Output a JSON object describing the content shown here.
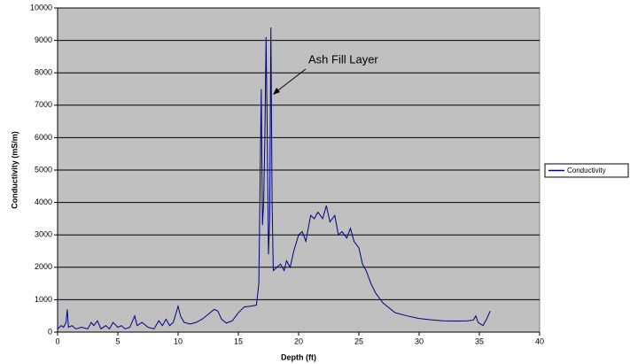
{
  "chart_data": {
    "type": "line",
    "xlabel": "Depth (ft)",
    "ylabel": "Conductivity (mS/m)",
    "annotation": "Ash Fill Layer",
    "legend": "right",
    "grid": true,
    "xlim": [
      0,
      40
    ],
    "xticks": [
      0,
      5,
      10,
      15,
      20,
      25,
      30,
      35,
      40
    ],
    "ylim": [
      0,
      10000
    ],
    "yticks": [
      0,
      1000,
      2000,
      3000,
      4000,
      5000,
      6000,
      7000,
      8000,
      9000,
      10000
    ],
    "x": [
      0,
      0.3,
      0.5,
      0.7,
      0.8,
      0.9,
      1.2,
      1.5,
      2,
      2.5,
      2.8,
      3,
      3.3,
      3.6,
      4,
      4.3,
      4.6,
      5,
      5.3,
      5.6,
      6,
      6.4,
      6.6,
      7,
      7.5,
      8,
      8.4,
      8.7,
      9,
      9.3,
      9.6,
      10,
      10.2,
      10.5,
      11,
      11.5,
      12,
      12.5,
      13,
      13.3,
      13.6,
      14,
      14.5,
      15,
      15.5,
      16,
      16.5,
      16.7,
      16.8,
      16.9,
      17.0,
      17.1,
      17.2,
      17.3,
      17.4,
      17.5,
      17.6,
      17.7,
      17.8,
      17.9,
      18.2,
      18.5,
      18.8,
      19,
      19.3,
      19.6,
      20,
      20.3,
      20.6,
      21,
      21.3,
      21.6,
      22,
      22.3,
      22.6,
      23,
      23.3,
      23.6,
      24,
      24.3,
      24.6,
      25,
      25.3,
      25.6,
      26,
      26.4,
      27,
      28,
      29,
      30,
      31,
      32,
      33,
      34,
      34.5,
      34.7,
      34.9,
      35.3,
      35.6,
      35.9
    ],
    "series": [
      {
        "name": "Conductivity",
        "color": "#000080",
        "values": [
          100,
          200,
          150,
          300,
          700,
          150,
          200,
          100,
          150,
          100,
          300,
          200,
          350,
          100,
          200,
          100,
          300,
          150,
          200,
          100,
          150,
          500,
          200,
          300,
          150,
          100,
          350,
          200,
          400,
          200,
          300,
          800,
          500,
          300,
          250,
          300,
          400,
          550,
          700,
          650,
          400,
          280,
          350,
          600,
          780,
          800,
          830,
          1500,
          4500,
          7500,
          3300,
          4000,
          6000,
          9100,
          6000,
          2400,
          3500,
          9400,
          4000,
          1900,
          2000,
          2100,
          1900,
          2200,
          2000,
          2500,
          3000,
          3100,
          2800,
          3600,
          3500,
          3700,
          3500,
          3900,
          3400,
          3600,
          3000,
          3100,
          2900,
          3200,
          2800,
          2600,
          2100,
          1900,
          1500,
          1200,
          900,
          600,
          500,
          420,
          380,
          350,
          340,
          350,
          370,
          500,
          300,
          200,
          400,
          650
        ]
      }
    ]
  }
}
